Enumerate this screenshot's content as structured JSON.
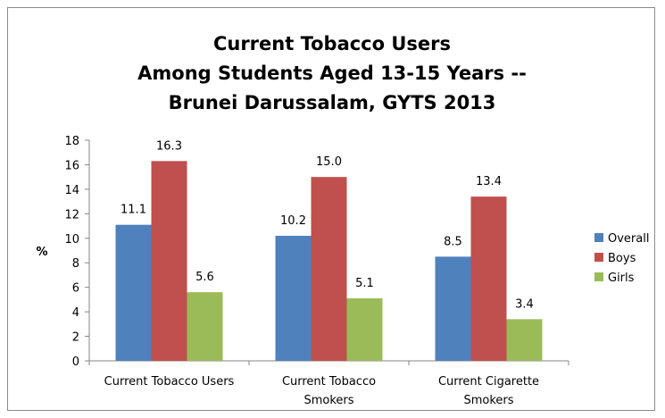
{
  "chart_data": {
    "type": "bar",
    "title": "Current Tobacco Users\nAmong Students Aged 13-15 Years --\nBrunei Darussalam, GYTS 2013",
    "xlabel": "",
    "ylabel": "%",
    "ylim": [
      0,
      18
    ],
    "yticks": [
      0,
      2,
      4,
      6,
      8,
      10,
      12,
      14,
      16,
      18
    ],
    "grid": false,
    "legend_position": "right",
    "categories": [
      [
        "Current Tobacco Users"
      ],
      [
        "Current Tobacco",
        "Smokers"
      ],
      [
        "Current Cigarette",
        "Smokers"
      ]
    ],
    "series": [
      {
        "name": "Overall",
        "color": "#4f81bd",
        "values": [
          11.1,
          10.2,
          8.5
        ],
        "labels": [
          "11.1",
          "10.2",
          "8.5"
        ]
      },
      {
        "name": "Boys",
        "color": "#c0504d",
        "values": [
          16.3,
          15.0,
          13.4
        ],
        "labels": [
          "16.3",
          "15.0",
          "13.4"
        ]
      },
      {
        "name": "Girls",
        "color": "#9bbb59",
        "values": [
          5.6,
          5.1,
          3.4
        ],
        "labels": [
          "5.6",
          "5.1",
          "3.4"
        ]
      }
    ]
  }
}
